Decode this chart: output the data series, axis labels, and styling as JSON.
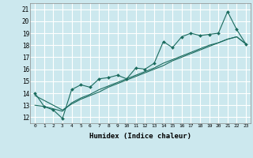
{
  "title": "",
  "xlabel": "Humidex (Indice chaleur)",
  "ylabel": "",
  "bg_color": "#cce8ee",
  "grid_color": "#ffffff",
  "line_color": "#1a6b5e",
  "xlim": [
    -0.5,
    23.5
  ],
  "ylim": [
    11.5,
    21.5
  ],
  "xticks": [
    0,
    1,
    2,
    3,
    4,
    5,
    6,
    7,
    8,
    9,
    10,
    11,
    12,
    13,
    14,
    15,
    16,
    17,
    18,
    19,
    20,
    21,
    22,
    23
  ],
  "yticks": [
    12,
    13,
    14,
    15,
    16,
    17,
    18,
    19,
    20,
    21
  ],
  "series1_x": [
    0,
    1,
    2,
    3,
    4,
    5,
    6,
    7,
    8,
    9,
    10,
    11,
    12,
    13,
    14,
    15,
    16,
    17,
    18,
    19,
    20,
    21,
    22,
    23
  ],
  "series1_y": [
    14.0,
    12.9,
    12.6,
    11.9,
    14.3,
    14.7,
    14.5,
    15.2,
    15.3,
    15.5,
    15.2,
    16.1,
    16.0,
    16.5,
    18.3,
    17.8,
    18.7,
    19.0,
    18.8,
    18.9,
    19.0,
    20.8,
    19.3,
    18.1
  ],
  "series2_x": [
    0,
    1,
    2,
    3,
    4,
    5,
    6,
    7,
    8,
    9,
    10,
    11,
    12,
    13,
    14,
    15,
    16,
    17,
    18,
    19,
    20,
    21,
    22,
    23
  ],
  "series2_y": [
    13.0,
    12.9,
    12.7,
    12.5,
    13.2,
    13.6,
    13.9,
    14.3,
    14.6,
    14.9,
    15.2,
    15.5,
    15.8,
    16.1,
    16.5,
    16.8,
    17.1,
    17.4,
    17.7,
    18.0,
    18.2,
    18.5,
    18.7,
    18.1
  ],
  "series3_x": [
    0,
    1,
    2,
    3,
    4,
    5,
    6,
    7,
    8,
    9,
    10,
    11,
    12,
    13,
    14,
    15,
    16,
    17,
    18,
    19,
    20,
    21,
    22,
    23
  ],
  "series3_y": [
    13.8,
    13.4,
    13.0,
    12.6,
    13.1,
    13.5,
    13.8,
    14.1,
    14.5,
    14.8,
    15.1,
    15.4,
    15.7,
    16.0,
    16.3,
    16.7,
    17.0,
    17.3,
    17.6,
    17.9,
    18.2,
    18.5,
    18.7,
    18.1
  ]
}
